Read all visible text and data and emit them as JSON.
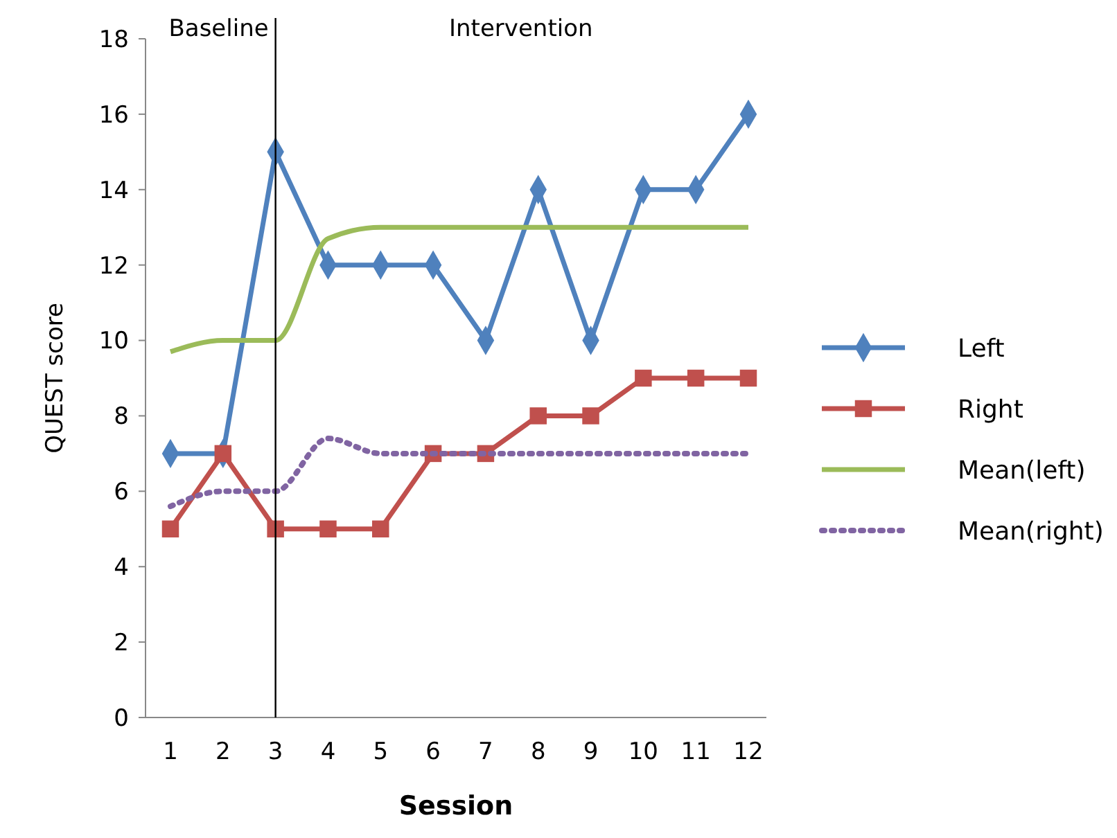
{
  "chart_data": {
    "type": "line",
    "xlabel": "Session",
    "ylabel": "QUEST score",
    "categories": [
      "1",
      "2",
      "3",
      "4",
      "5",
      "6",
      "7",
      "8",
      "9",
      "10",
      "11",
      "12"
    ],
    "ylim": [
      0,
      18
    ],
    "yticks": [
      0,
      2,
      4,
      6,
      8,
      10,
      12,
      14,
      16,
      18
    ],
    "grid": false,
    "legend": "right",
    "series": [
      {
        "name": "Left",
        "color": "#4f81bd",
        "marker": "diamond",
        "line_style": "solid",
        "values": [
          7,
          7,
          15,
          12,
          12,
          12,
          10,
          14,
          10,
          14,
          14,
          16
        ]
      },
      {
        "name": "Right",
        "color": "#c0504d",
        "marker": "square",
        "line_style": "solid",
        "values": [
          5,
          7,
          5,
          5,
          5,
          7,
          7,
          8,
          8,
          9,
          9,
          9
        ]
      },
      {
        "name": "Mean(left)",
        "color": "#9bbb59",
        "marker": "none",
        "line_style": "solid",
        "values": [
          9.7,
          10,
          10,
          12.7,
          13,
          13,
          13,
          13,
          13,
          13,
          13,
          13
        ]
      },
      {
        "name": "Mean(right)",
        "color": "#8064a2",
        "marker": "none",
        "line_style": "dotted",
        "values": [
          5.6,
          6,
          6,
          7.4,
          7,
          7,
          7,
          7,
          7,
          7,
          7,
          7
        ]
      }
    ],
    "ref_lines": [
      {
        "axis": "x",
        "value": "3",
        "color": "#000000"
      }
    ],
    "annotations": [
      "Baseline",
      "Intervention"
    ]
  }
}
